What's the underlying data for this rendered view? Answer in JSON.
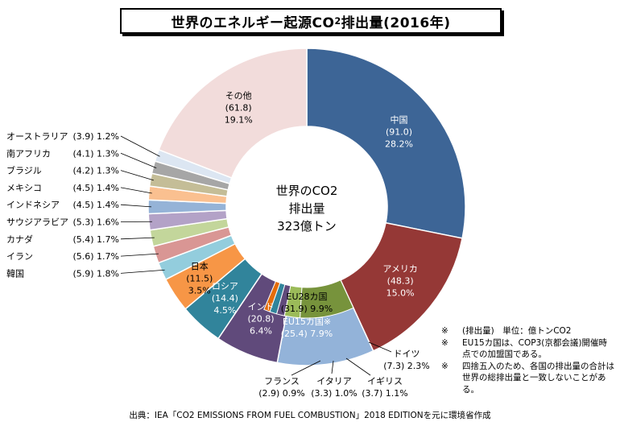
{
  "title": {
    "prefix": "世界のエネルギー起源CO",
    "sub": "2",
    "suffix": "排出量(2016年)"
  },
  "center": {
    "line1a": "世界のCO",
    "line1sub": "2",
    "line2": "排出量",
    "line3": "323億トン"
  },
  "colors": {
    "china": "#3d6596",
    "usa": "#953836",
    "eu28": "#93b3d9",
    "eu15": "#77933c",
    "russia": "#31849b",
    "india": "#604a7b",
    "other": "#f2dcdb",
    "japan": "#f79646",
    "korea": "#93cddd"
  },
  "chart_data": {
    "type": "pie",
    "title": "世界のエネルギー起源CO2排出量(2016年)",
    "total_label": "323億トン",
    "unit": "億トンCO2",
    "outer_ring": [
      {
        "name": "中国",
        "value": 91.0,
        "share": "28.2%",
        "color": "#3d6596"
      },
      {
        "name": "アメリカ",
        "value": 48.3,
        "share": "15.0%",
        "color": "#953836"
      },
      {
        "name": "EU28カ国",
        "value": 31.9,
        "share": "9.9%",
        "color": "#93b3d9"
      },
      {
        "name": "インド",
        "value": 20.8,
        "share": "6.4%",
        "color": "#604a7b"
      },
      {
        "name": "ロシア",
        "value": 14.4,
        "share": "4.5%",
        "color": "#31849b"
      },
      {
        "name": "日本",
        "value": 11.5,
        "share": "3.5%",
        "color": "#f79646"
      },
      {
        "name": "韓国",
        "value": 5.9,
        "share": "1.8%",
        "color": "#93cddd"
      },
      {
        "name": "イラン",
        "value": 5.6,
        "share": "1.7%",
        "color": "#d99694"
      },
      {
        "name": "カナダ",
        "value": 5.4,
        "share": "1.7%",
        "color": "#c3d69b"
      },
      {
        "name": "サウジアラビア",
        "value": 5.3,
        "share": "1.6%",
        "color": "#b3a2c7"
      },
      {
        "name": "インドネシア",
        "value": 4.5,
        "share": "1.4%",
        "color": "#95b3d7"
      },
      {
        "name": "メキシコ",
        "value": 4.5,
        "share": "1.4%",
        "color": "#fac090"
      },
      {
        "name": "ブラジル",
        "value": 4.2,
        "share": "1.3%",
        "color": "#c4bd97"
      },
      {
        "name": "南アフリカ",
        "value": 4.1,
        "share": "1.3%",
        "color": "#a6a6a6"
      },
      {
        "name": "オーストラリア",
        "value": 3.9,
        "share": "1.2%",
        "color": "#dce6f2"
      },
      {
        "name": "その他",
        "value": 61.8,
        "share": "19.1%",
        "color": "#f2dcdb"
      }
    ],
    "eu_inner": [
      {
        "name": "EU15カ国",
        "value": 25.4,
        "share": "7.9%",
        "color": "#77933c"
      },
      {
        "name": "ドイツ",
        "value": 7.3,
        "share": "2.3%",
        "color": "#9bbb59"
      },
      {
        "name": "イギリス",
        "value": 3.7,
        "share": "1.1%",
        "color": "#604a7b"
      },
      {
        "name": "イタリア",
        "value": 3.3,
        "share": "1.0%",
        "color": "#31849b"
      },
      {
        "name": "フランス",
        "value": 2.9,
        "share": "0.9%",
        "color": "#e46c0a"
      }
    ],
    "left_labels": [
      {
        "name": "オーストラリア",
        "text": "(3.9) 1.2%"
      },
      {
        "name": "南アフリカ",
        "text": "(4.1) 1.3%"
      },
      {
        "name": "ブラジル",
        "text": "(4.2) 1.3%"
      },
      {
        "name": "メキシコ",
        "text": "(4.5) 1.4%"
      },
      {
        "name": "インドネシア",
        "text": "(4.5) 1.4%"
      },
      {
        "name": "サウジアラビア",
        "text": "(5.3) 1.6%"
      },
      {
        "name": "カナダ",
        "text": "(5.4) 1.7%"
      },
      {
        "name": "イラン",
        "text": "(5.6) 1.7%"
      },
      {
        "name": "韓国",
        "text": "(5.9) 1.8%"
      }
    ],
    "bottom_labels": [
      {
        "name": "ドイツ",
        "line2": "(7.3) 2.3%"
      },
      {
        "name": "イギリス",
        "line2": "(3.7) 1.1%"
      },
      {
        "name": "イタリア",
        "line2": "(3.3) 1.0%"
      },
      {
        "name": "フランス",
        "line2": "(2.9) 0.9%"
      }
    ]
  },
  "notes": [
    {
      "mark": "※",
      "text": "(排出量)　単位：億トンCO2"
    },
    {
      "mark": "※",
      "text": "EU15カ国は、COP3(京都会議)開催時点での加盟国である。"
    },
    {
      "mark": "※",
      "text": "四捨五入のため、各国の排出量の合計は世界の総排出量と一致しないことがある。"
    }
  ],
  "source": "出典：IEA「CO2 EMISSIONS FROM FUEL COMBUSTION」2018 EDITIONを元に環境省作成"
}
